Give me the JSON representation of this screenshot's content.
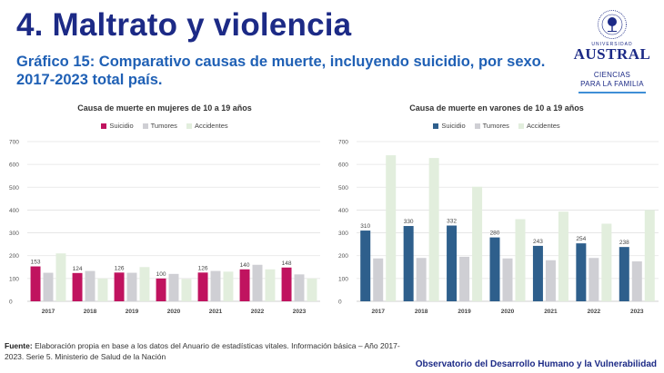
{
  "header": {
    "title": "4. Maltrato y violencia",
    "subtitle_line1": "Gráfico 15:  Comparativo causas de muerte, incluyendo suicidio, por sexo.",
    "subtitle_line2": "2017-2023 total país."
  },
  "logo": {
    "university_small": "UNIVERSIDAD",
    "university_name": "AUSTRAL",
    "department_line1": "CIENCIAS",
    "department_line2": "PARA LA FAMILIA"
  },
  "footer": {
    "source_label": "Fuente:",
    "source_text": " Elaboración propia en base a los datos del Anuario de estadísticas vitales. Información básica – Año 2017-2023. Serie 5. Ministerio de Salud de la Nación",
    "observatory": "Observatorio del Desarrollo Humano y la Vulnerabilidad"
  },
  "chart_data": [
    {
      "type": "bar",
      "title": "Causa de muerte en mujeres de 10 a 19 años",
      "categories": [
        "2017",
        "2018",
        "2019",
        "2020",
        "2021",
        "2022",
        "2023"
      ],
      "series": [
        {
          "name": "Suicidio",
          "color": "#c0135f",
          "values": [
            153,
            124,
            126,
            100,
            126,
            140,
            148
          ],
          "labeled": true
        },
        {
          "name": "Tumores",
          "color": "#cfcfd4",
          "values": [
            125,
            133,
            125,
            120,
            133,
            160,
            118
          ],
          "labeled": false
        },
        {
          "name": "Accidentes",
          "color": "#e2eedd",
          "values": [
            210,
            100,
            150,
            98,
            130,
            140,
            100
          ],
          "labeled": false
        }
      ],
      "yticks": [
        0,
        100,
        200,
        300,
        400,
        500,
        600,
        700
      ],
      "ylim": [
        0,
        700
      ],
      "xlabel": "",
      "ylabel": "",
      "grid": true,
      "legend": "top-center"
    },
    {
      "type": "bar",
      "title": "Causa de muerte en varones de 10 a 19 años",
      "categories": [
        "2017",
        "2018",
        "2019",
        "2020",
        "2021",
        "2022",
        "2023"
      ],
      "series": [
        {
          "name": "Suicidio",
          "color": "#2e5f8c",
          "values": [
            310,
            330,
            332,
            280,
            243,
            254,
            238
          ],
          "labeled": true
        },
        {
          "name": "Tumores",
          "color": "#cfcfd4",
          "values": [
            188,
            190,
            195,
            188,
            180,
            190,
            175
          ],
          "labeled": false
        },
        {
          "name": "Accidentes",
          "color": "#e2eedd",
          "values": [
            640,
            628,
            502,
            360,
            393,
            340,
            400
          ],
          "labeled": false
        }
      ],
      "yticks": [
        0,
        100,
        200,
        300,
        400,
        500,
        600,
        700
      ],
      "ylim": [
        0,
        700
      ],
      "xlabel": "",
      "ylabel": "",
      "grid": true,
      "legend": "top-center"
    }
  ]
}
